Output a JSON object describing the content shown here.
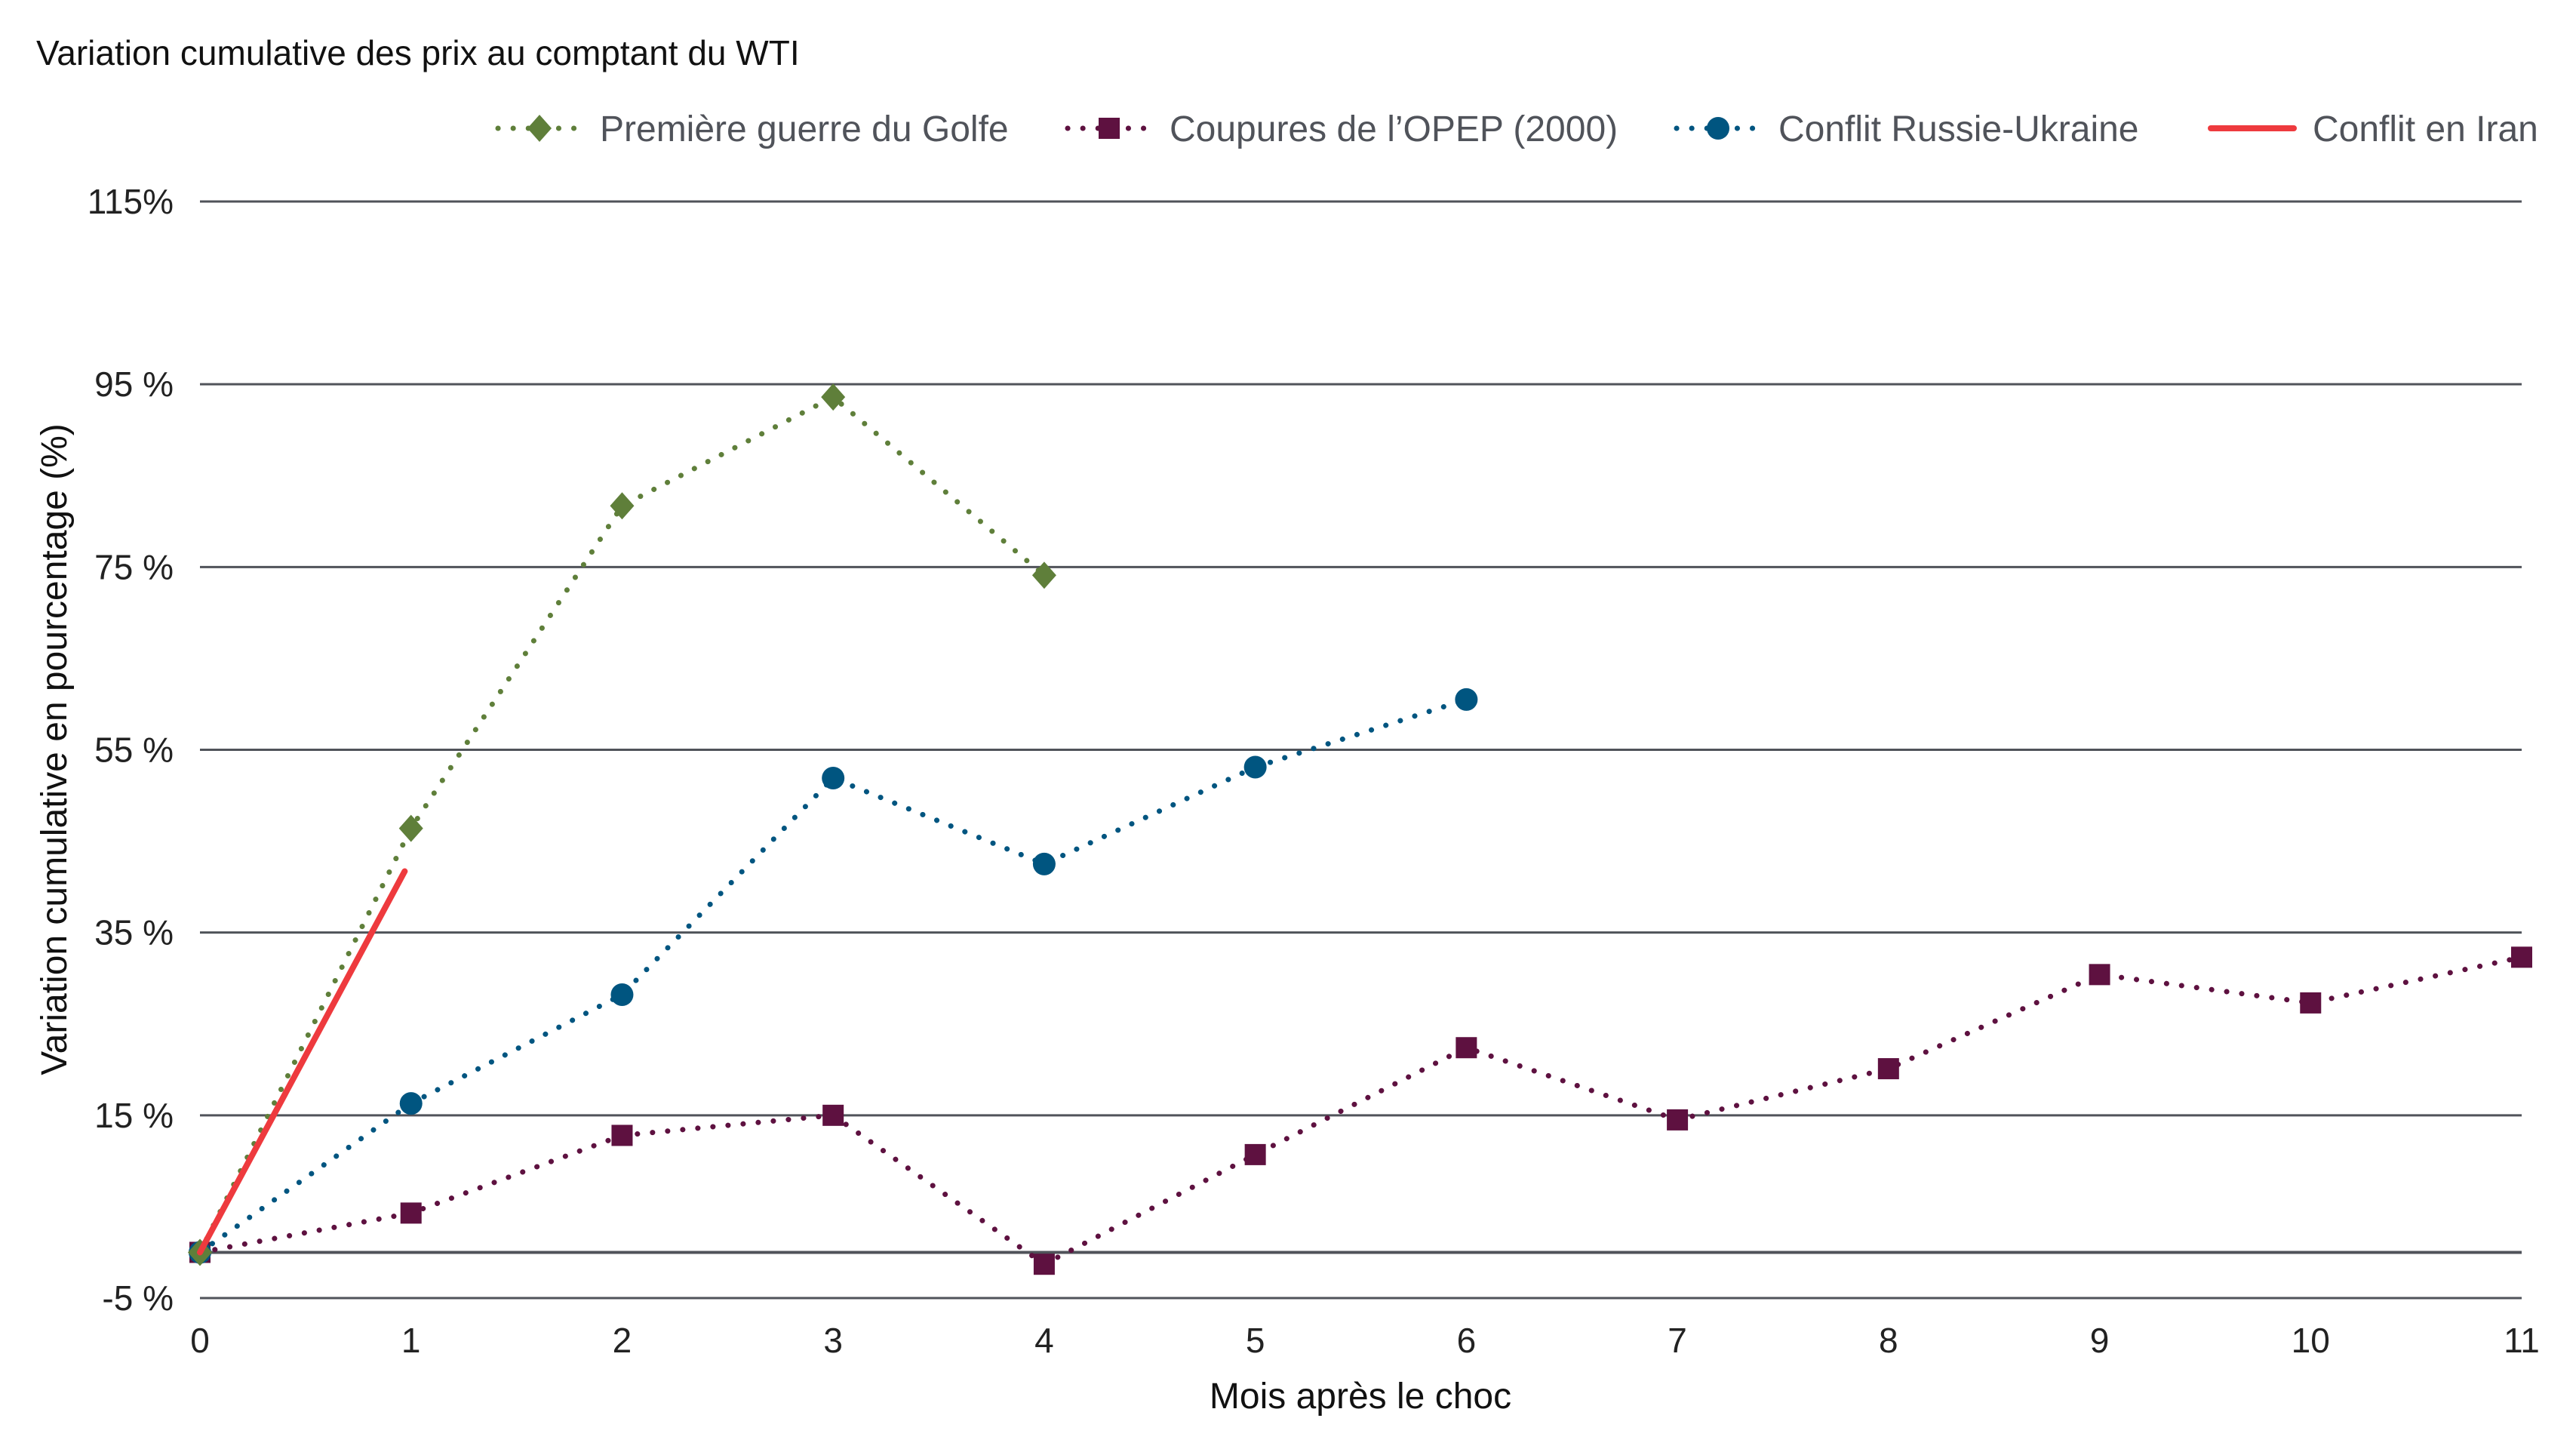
{
  "chart_data": {
    "type": "line",
    "title": "Variation cumulative des prix au comptant du WTI",
    "xlabel": "Mois après le choc",
    "ylabel": "Variation cumulative en pourcentage (%)",
    "x_ticks": [
      "0",
      "1",
      "2",
      "3",
      "4",
      "5",
      "6",
      "7",
      "8",
      "9",
      "10",
      "11"
    ],
    "y_ticks": [
      {
        "value": 115,
        "label": "115%"
      },
      {
        "value": 95,
        "label": "95 %"
      },
      {
        "value": 75,
        "label": "75 %"
      },
      {
        "value": 55,
        "label": "55 %"
      },
      {
        "value": 35,
        "label": "35 %"
      },
      {
        "value": 15,
        "label": "15 %"
      },
      {
        "value": -5,
        "label": "-5 %"
      }
    ],
    "xlim": [
      0,
      11
    ],
    "ylim": [
      -5,
      115
    ],
    "grid": "horizontal",
    "legend_position": "top-right",
    "series": [
      {
        "name": "Première guerre du Golfe",
        "color": "#5f7f3a",
        "marker": "diamond",
        "style": "dotted",
        "x": [
          0,
          1,
          2,
          3,
          4
        ],
        "values": [
          0,
          46.4,
          81.7,
          93.6,
          74.1
        ]
      },
      {
        "name": "Coupures de l’OPEP (2000)",
        "color": "#5e1140",
        "marker": "square",
        "style": "dotted",
        "x": [
          0,
          1,
          2,
          3,
          4,
          5,
          6,
          7,
          8,
          9,
          10,
          11
        ],
        "values": [
          0,
          4.3,
          12.8,
          15.0,
          -1.3,
          10.7,
          22.4,
          14.5,
          20.1,
          30.4,
          27.3,
          32.3
        ]
      },
      {
        "name": "Conflit Russie-Ukraine",
        "color": "#005580",
        "marker": "circle",
        "style": "dotted",
        "x": [
          0,
          1,
          2,
          3,
          4,
          5,
          6
        ],
        "values": [
          0,
          16.3,
          28.2,
          51.9,
          42.5,
          53.1,
          60.5
        ]
      },
      {
        "name": "Conflit en Iran",
        "color": "#ee3a3e",
        "marker": "none",
        "style": "solid",
        "x": [
          0,
          0.97
        ],
        "values": [
          0,
          41.7
        ]
      }
    ]
  }
}
